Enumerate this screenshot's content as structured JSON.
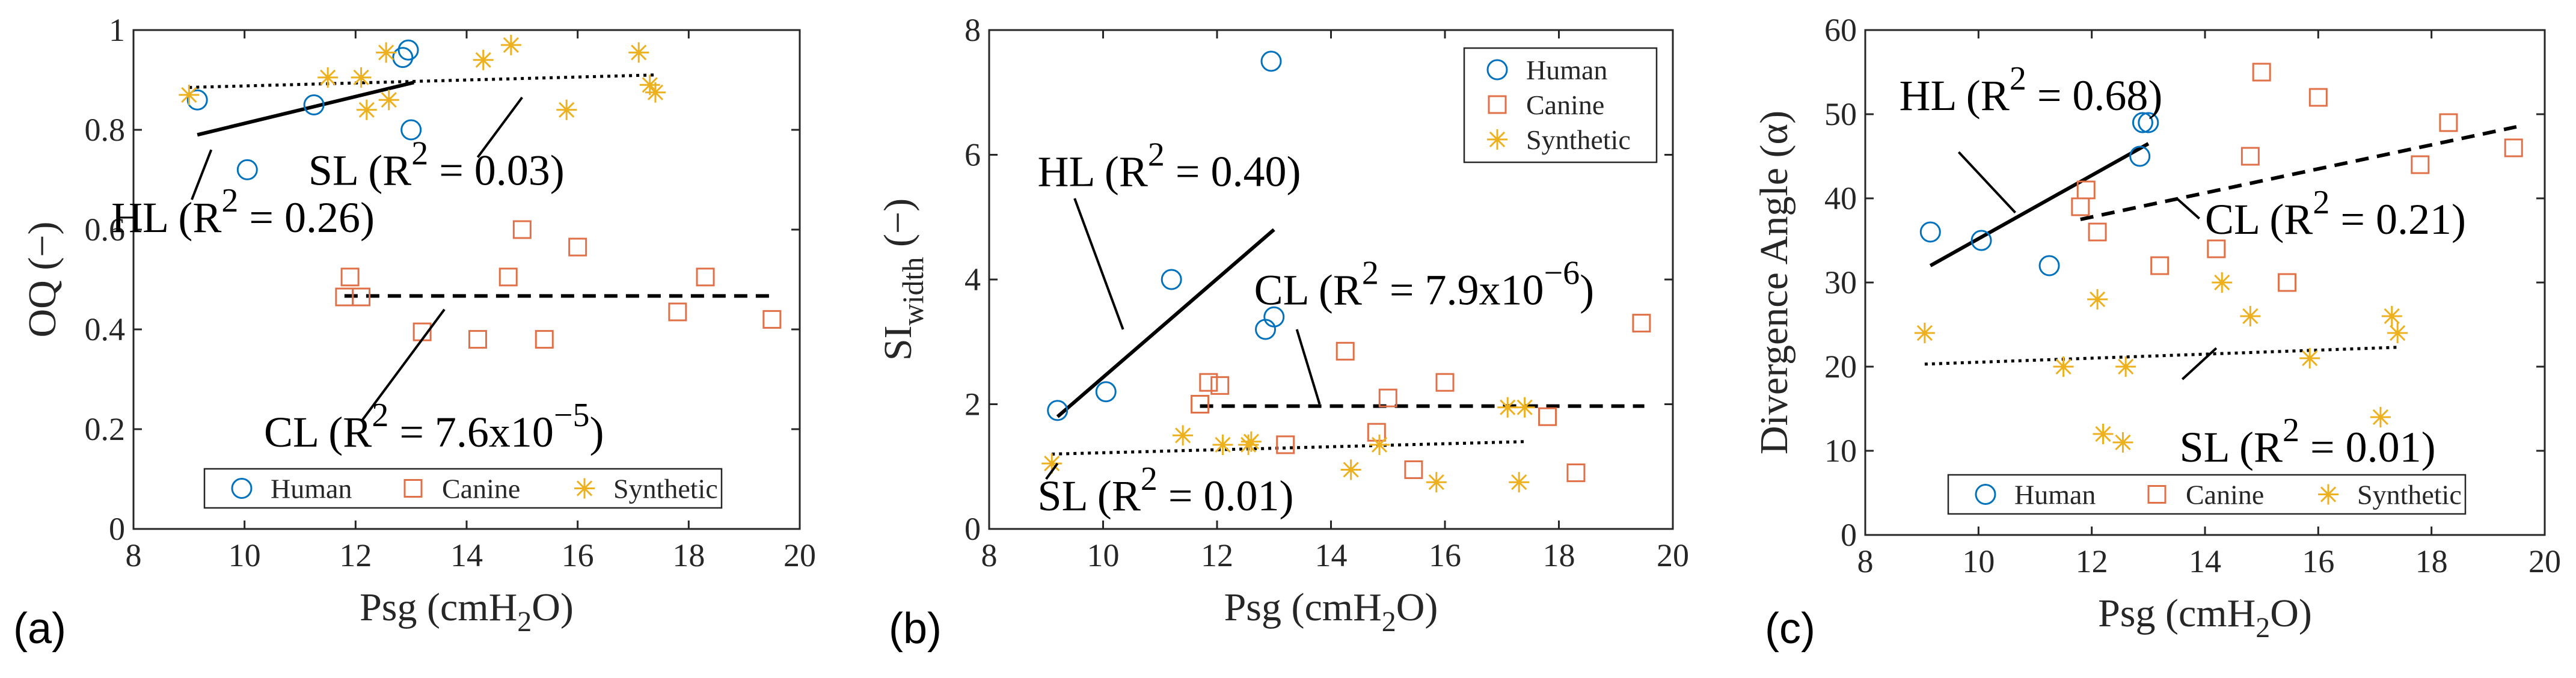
{
  "chart_data": [
    {
      "type": "scatter",
      "panel_label": "(a)",
      "xlabel_main": "Psg (cmH",
      "xlabel_sub": "2",
      "xlabel_tail": "O)",
      "ylabel": "OQ (−)",
      "ylabel_sub": "",
      "xlim": [
        8,
        20
      ],
      "ylim": [
        0,
        1
      ],
      "xticks": [
        "8",
        "10",
        "12",
        "14",
        "16",
        "18",
        "20"
      ],
      "yticks": [
        "0",
        "0.2",
        "0.4",
        "0.6",
        "0.8",
        "1"
      ],
      "legend_position": "bottom",
      "series": [
        {
          "name": "Human",
          "marker": "circle",
          "color": "#0072BD",
          "points": [
            [
              9.15,
              0.86
            ],
            [
              10.05,
              0.72
            ],
            [
              11.25,
              0.85
            ],
            [
              12.85,
              0.945
            ],
            [
              12.95,
              0.96
            ],
            [
              13.0,
              0.8
            ]
          ]
        },
        {
          "name": "Canine",
          "marker": "square",
          "color": "#E07048",
          "points": [
            [
              11.8,
              0.465
            ],
            [
              11.9,
              0.505
            ],
            [
              12.1,
              0.465
            ],
            [
              13.2,
              0.395
            ],
            [
              14.2,
              0.38
            ],
            [
              14.75,
              0.505
            ],
            [
              15.0,
              0.6
            ],
            [
              15.4,
              0.38
            ],
            [
              16.0,
              0.565
            ],
            [
              17.8,
              0.435
            ],
            [
              18.3,
              0.505
            ],
            [
              19.5,
              0.42
            ]
          ]
        },
        {
          "name": "Synthetic",
          "marker": "asterisk",
          "color": "#EDB120",
          "points": [
            [
              9.0,
              0.87
            ],
            [
              11.5,
              0.905
            ],
            [
              12.1,
              0.905
            ],
            [
              12.2,
              0.84
            ],
            [
              12.55,
              0.955
            ],
            [
              12.6,
              0.86
            ],
            [
              14.3,
              0.94
            ],
            [
              14.8,
              0.97
            ],
            [
              15.8,
              0.84
            ],
            [
              17.1,
              0.955
            ],
            [
              17.3,
              0.89
            ],
            [
              17.4,
              0.875
            ]
          ]
        }
      ],
      "fits": [
        {
          "name": "HL",
          "style": "solid",
          "x": [
            9.15,
            13.05
          ],
          "y": [
            0.79,
            0.895
          ]
        },
        {
          "name": "SL",
          "style": "dotted",
          "x": [
            9.0,
            17.4
          ],
          "y": [
            0.885,
            0.91
          ]
        },
        {
          "name": "CL",
          "style": "dashed",
          "x": [
            11.8,
            19.5
          ],
          "y": [
            0.467,
            0.467
          ]
        }
      ],
      "annotations": [
        {
          "pre": "HL (R",
          "sup": "2",
          "post": " = 0.26)",
          "tx": 7.6,
          "ty": 0.595,
          "lx1": 9.05,
          "ly1": 0.66,
          "lx2": 9.4,
          "ly2": 0.76
        },
        {
          "pre": "SL (R",
          "sup": "2",
          "post": " = 0.03)",
          "tx": 11.15,
          "ty": 0.69,
          "lx1": 14.2,
          "ly1": 0.745,
          "lx2": 15.0,
          "ly2": 0.865
        },
        {
          "pre": "CL (R",
          "sup": "2",
          "post": " = 7.6x10",
          "sup2": "−5",
          "post2": ")",
          "tx": 10.35,
          "ty": 0.165,
          "lx1": 12.1,
          "ly1": 0.215,
          "lx2": 13.6,
          "ly2": 0.44
        }
      ],
      "legend": [
        "Human",
        "Canine",
        "Synthetic"
      ]
    },
    {
      "type": "scatter",
      "panel_label": "(b)",
      "xlabel_main": "Psg (cmH",
      "xlabel_sub": "2",
      "xlabel_tail": "O)",
      "ylabel": "SI",
      "ylabel_sub": "width",
      "ylabel_tail": " (−)",
      "xlim": [
        8,
        20
      ],
      "ylim": [
        0,
        8
      ],
      "xticks": [
        "8",
        "10",
        "12",
        "14",
        "16",
        "18",
        "20"
      ],
      "yticks": [
        "0",
        "2",
        "4",
        "6",
        "8"
      ],
      "legend_position": "top-right",
      "series": [
        {
          "name": "Human",
          "marker": "circle",
          "color": "#0072BD",
          "points": [
            [
              9.2,
              1.9
            ],
            [
              10.05,
              2.2
            ],
            [
              11.2,
              4.0
            ],
            [
              12.85,
              3.2
            ],
            [
              13.0,
              3.4
            ],
            [
              12.95,
              7.5
            ]
          ]
        },
        {
          "name": "Canine",
          "marker": "square",
          "color": "#E07048",
          "points": [
            [
              11.7,
              2.0
            ],
            [
              11.85,
              2.35
            ],
            [
              12.05,
              2.3
            ],
            [
              13.2,
              1.35
            ],
            [
              14.25,
              2.85
            ],
            [
              14.8,
              1.55
            ],
            [
              15.0,
              2.1
            ],
            [
              15.45,
              0.95
            ],
            [
              16.0,
              2.35
            ],
            [
              17.8,
              1.8
            ],
            [
              18.3,
              0.9
            ],
            [
              19.45,
              3.3
            ]
          ]
        },
        {
          "name": "Synthetic",
          "marker": "asterisk",
          "color": "#EDB120",
          "points": [
            [
              9.1,
              1.05
            ],
            [
              11.4,
              1.5
            ],
            [
              12.1,
              1.35
            ],
            [
              12.55,
              1.35
            ],
            [
              12.6,
              1.4
            ],
            [
              14.35,
              0.95
            ],
            [
              14.85,
              1.35
            ],
            [
              15.85,
              0.75
            ],
            [
              17.1,
              1.95
            ],
            [
              17.3,
              0.75
            ],
            [
              17.4,
              1.95
            ]
          ]
        }
      ],
      "fits": [
        {
          "name": "HL",
          "style": "solid",
          "x": [
            9.2,
            13.0
          ],
          "y": [
            1.8,
            4.8
          ]
        },
        {
          "name": "SL",
          "style": "dotted",
          "x": [
            9.1,
            17.4
          ],
          "y": [
            1.2,
            1.4
          ]
        },
        {
          "name": "CL",
          "style": "dashed",
          "x": [
            11.7,
            19.5
          ],
          "y": [
            1.97,
            1.97
          ]
        }
      ],
      "annotations": [
        {
          "pre": "HL (R",
          "sup": "2",
          "post": " = 0.40)",
          "tx": 8.85,
          "ty": 5.5,
          "lx1": 10.35,
          "ly1": 3.2,
          "lx2": 9.5,
          "ly2": 5.3
        },
        {
          "pre": "CL (R",
          "sup": "2",
          "post": " = 7.9x10",
          "sup2": "−6",
          "post2": ")",
          "tx": 12.65,
          "ty": 3.6,
          "lx1": 13.8,
          "ly1": 2.0,
          "lx2": 13.4,
          "ly2": 3.2
        },
        {
          "pre": "SL (R",
          "sup": "2",
          "post": " = 0.01)",
          "tx": 8.85,
          "ty": 0.3,
          "lx1": 9.0,
          "ly1": 0.8,
          "lx2": 9.2,
          "ly2": 1.05
        }
      ],
      "legend": [
        "Human",
        "Canine",
        "Synthetic"
      ]
    },
    {
      "type": "scatter",
      "panel_label": "(c)",
      "xlabel_main": "Psg (cmH",
      "xlabel_sub": "2",
      "xlabel_tail": "O)",
      "ylabel": "Divergence Angle (α)",
      "ylabel_sub": "",
      "xlim": [
        8,
        20
      ],
      "ylim": [
        0,
        60
      ],
      "xticks": [
        "8",
        "10",
        "12",
        "14",
        "16",
        "18",
        "20"
      ],
      "yticks": [
        "0",
        "10",
        "20",
        "30",
        "40",
        "50",
        "60"
      ],
      "legend_position": "bottom",
      "series": [
        {
          "name": "Human",
          "marker": "circle",
          "color": "#0072BD",
          "points": [
            [
              9.15,
              36
            ],
            [
              10.05,
              35
            ],
            [
              11.25,
              32
            ],
            [
              12.85,
              45
            ],
            [
              12.9,
              49
            ],
            [
              13.0,
              49
            ]
          ]
        },
        {
          "name": "Canine",
          "marker": "square",
          "color": "#E07048",
          "points": [
            [
              11.8,
              39
            ],
            [
              11.9,
              41
            ],
            [
              12.1,
              36
            ],
            [
              13.2,
              32
            ],
            [
              14.2,
              34
            ],
            [
              14.8,
              45
            ],
            [
              15.0,
              55
            ],
            [
              15.45,
              30
            ],
            [
              16.0,
              52
            ],
            [
              17.8,
              44
            ],
            [
              18.3,
              49
            ],
            [
              19.45,
              46
            ]
          ]
        },
        {
          "name": "Synthetic",
          "marker": "asterisk",
          "color": "#EDB120",
          "points": [
            [
              9.05,
              24
            ],
            [
              11.5,
              20
            ],
            [
              12.1,
              28
            ],
            [
              12.2,
              12
            ],
            [
              12.55,
              11
            ],
            [
              12.6,
              20
            ],
            [
              14.3,
              30
            ],
            [
              14.8,
              26
            ],
            [
              15.85,
              21
            ],
            [
              17.1,
              14
            ],
            [
              17.3,
              26
            ],
            [
              17.4,
              24
            ]
          ]
        }
      ],
      "fits": [
        {
          "name": "HL",
          "style": "solid",
          "x": [
            9.15,
            13.0
          ],
          "y": [
            32,
            46.5
          ]
        },
        {
          "name": "SL",
          "style": "dotted",
          "x": [
            9.05,
            17.4
          ],
          "y": [
            20.3,
            22.3
          ]
        },
        {
          "name": "CL",
          "style": "dashed",
          "x": [
            11.8,
            19.5
          ],
          "y": [
            37.5,
            48.5
          ]
        }
      ],
      "annotations": [
        {
          "pre": "HL (R",
          "sup": "2",
          "post": " = 0.68)",
          "tx": 8.6,
          "ty": 50.5,
          "lx1": 10.65,
          "ly1": 38.3,
          "lx2": 9.65,
          "ly2": 45.5
        },
        {
          "pre": "CL (R",
          "sup": "2",
          "post": " = 0.21)",
          "tx": 14.0,
          "ty": 35.8,
          "lx1": 13.9,
          "ly1": 37.6,
          "lx2": 13.5,
          "ly2": 40.0
        },
        {
          "pre": "SL (R",
          "sup": "2",
          "post": " = 0.01)",
          "tx": 13.55,
          "ty": 8.7,
          "lx1": 13.6,
          "ly1": 18.5,
          "lx2": 14.2,
          "ly2": 22.2
        }
      ],
      "legend": [
        "Human",
        "Canine",
        "Synthetic"
      ]
    }
  ]
}
